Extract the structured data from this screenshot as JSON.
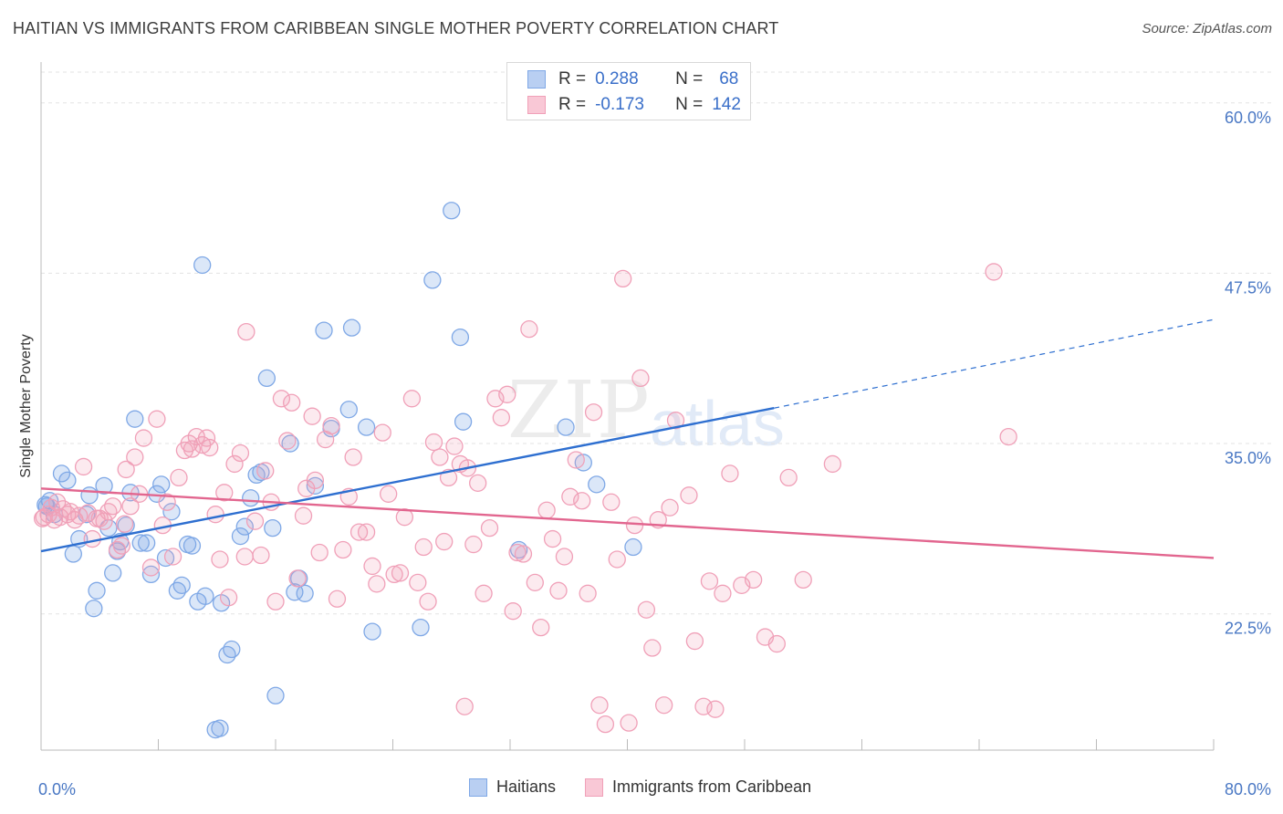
{
  "title": "HAITIAN VS IMMIGRANTS FROM CARIBBEAN SINGLE MOTHER POVERTY CORRELATION CHART",
  "source": "Source: ZipAtlas.com",
  "watermark": {
    "zip": "ZIP",
    "atlas": "atlas"
  },
  "legend": {
    "rows": [
      {
        "r_label": "R =",
        "r_value": "0.288",
        "n_label": "N =",
        "n_value": "68",
        "color": "#7fa8e6"
      },
      {
        "r_label": "R =",
        "r_value": "-0.173",
        "n_label": "N =",
        "n_value": "142",
        "color": "#f0a0b8"
      }
    ]
  },
  "bottom_legend": [
    "Haitians",
    "Immigrants from Caribbean"
  ],
  "chart_data": {
    "type": "scatter",
    "title": "HAITIAN VS IMMIGRANTS FROM CARIBBEAN SINGLE MOTHER POVERTY CORRELATION CHART",
    "xlabel": "",
    "ylabel": "Single Mother Poverty",
    "xlim": [
      0,
      80
    ],
    "ylim": [
      12.5,
      63
    ],
    "x_tick_labels": [
      "0.0%",
      "80.0%"
    ],
    "y_ticks": [
      22.5,
      35.0,
      47.5,
      60.0
    ],
    "y_tick_labels": [
      "22.5%",
      "35.0%",
      "47.5%",
      "60.0%"
    ],
    "grid": true,
    "legend_position": "top-center",
    "series": [
      {
        "name": "Haitians",
        "color": "#7fa8e6",
        "stroke": "#5b8ed6",
        "trend": {
          "x0": 0,
          "y0": 27.1,
          "x1": 50,
          "y1": 37.6,
          "dash_to_x": 80,
          "dash_to_y": 44.1
        },
        "points": [
          [
            0.3,
            30.5
          ],
          [
            0.6,
            30.8
          ],
          [
            0.9,
            29.8
          ],
          [
            1.4,
            32.8
          ],
          [
            1.8,
            32.3
          ],
          [
            2.2,
            26.9
          ],
          [
            2.6,
            28.0
          ],
          [
            3.1,
            29.8
          ],
          [
            3.3,
            31.2
          ],
          [
            3.6,
            22.9
          ],
          [
            3.8,
            24.2
          ],
          [
            4.3,
            31.9
          ],
          [
            4.6,
            28.8
          ],
          [
            4.9,
            25.5
          ],
          [
            5.2,
            27.1
          ],
          [
            5.4,
            27.8
          ],
          [
            5.8,
            29.0
          ],
          [
            6.1,
            31.4
          ],
          [
            6.4,
            36.8
          ],
          [
            6.8,
            27.7
          ],
          [
            7.2,
            27.7
          ],
          [
            7.5,
            25.4
          ],
          [
            7.9,
            31.3
          ],
          [
            8.2,
            32.0
          ],
          [
            8.5,
            26.6
          ],
          [
            8.9,
            30.0
          ],
          [
            9.3,
            24.2
          ],
          [
            9.6,
            24.6
          ],
          [
            10.0,
            27.6
          ],
          [
            10.3,
            27.5
          ],
          [
            10.7,
            23.4
          ],
          [
            11.0,
            48.1
          ],
          [
            11.2,
            23.8
          ],
          [
            11.9,
            14.0
          ],
          [
            12.2,
            14.1
          ],
          [
            12.3,
            23.3
          ],
          [
            12.7,
            19.5
          ],
          [
            13.0,
            19.9
          ],
          [
            13.6,
            28.2
          ],
          [
            13.9,
            28.9
          ],
          [
            14.3,
            31.0
          ],
          [
            14.7,
            32.7
          ],
          [
            15.0,
            32.9
          ],
          [
            15.4,
            39.8
          ],
          [
            15.8,
            28.8
          ],
          [
            16.0,
            16.5
          ],
          [
            17.0,
            35.0
          ],
          [
            17.3,
            24.1
          ],
          [
            17.6,
            25.1
          ],
          [
            18.0,
            24.0
          ],
          [
            18.7,
            31.9
          ],
          [
            19.3,
            43.3
          ],
          [
            19.8,
            36.1
          ],
          [
            21.0,
            37.5
          ],
          [
            21.2,
            43.5
          ],
          [
            22.2,
            36.2
          ],
          [
            22.6,
            21.2
          ],
          [
            25.9,
            21.5
          ],
          [
            26.7,
            47.0
          ],
          [
            28.0,
            52.1
          ],
          [
            28.6,
            42.8
          ],
          [
            28.8,
            36.6
          ],
          [
            32.6,
            27.2
          ],
          [
            35.8,
            36.2
          ],
          [
            37.0,
            33.6
          ],
          [
            37.9,
            32.0
          ],
          [
            40.4,
            27.4
          ],
          [
            0.4,
            30.4
          ]
        ]
      },
      {
        "name": "Immigrants from Caribbean",
        "color": "#f0a0b8",
        "stroke": "#e67a9a",
        "trend": {
          "x0": 0,
          "y0": 31.7,
          "x1": 80,
          "y1": 26.6
        },
        "points": [
          [
            0.2,
            29.6
          ],
          [
            0.5,
            29.8
          ],
          [
            0.7,
            30.3
          ],
          [
            0.9,
            29.4
          ],
          [
            1.1,
            30.7
          ],
          [
            1.3,
            29.6
          ],
          [
            1.5,
            30.2
          ],
          [
            1.8,
            29.8
          ],
          [
            2.0,
            30.0
          ],
          [
            2.3,
            29.4
          ],
          [
            2.6,
            29.7
          ],
          [
            2.9,
            33.3
          ],
          [
            3.2,
            29.9
          ],
          [
            3.5,
            28.0
          ],
          [
            3.8,
            29.5
          ],
          [
            4.0,
            29.5
          ],
          [
            4.3,
            29.3
          ],
          [
            4.6,
            30.0
          ],
          [
            4.9,
            30.4
          ],
          [
            5.2,
            27.2
          ],
          [
            5.5,
            27.5
          ],
          [
            5.7,
            29.1
          ],
          [
            5.8,
            33.1
          ],
          [
            6.1,
            30.4
          ],
          [
            6.4,
            34.0
          ],
          [
            6.7,
            31.3
          ],
          [
            7.0,
            35.4
          ],
          [
            7.5,
            25.9
          ],
          [
            7.9,
            36.8
          ],
          [
            8.3,
            29.0
          ],
          [
            8.6,
            30.7
          ],
          [
            9.0,
            26.7
          ],
          [
            9.4,
            32.5
          ],
          [
            9.8,
            34.5
          ],
          [
            10.1,
            35.0
          ],
          [
            10.3,
            34.6
          ],
          [
            10.6,
            35.5
          ],
          [
            11.0,
            34.9
          ],
          [
            11.3,
            35.4
          ],
          [
            11.5,
            34.7
          ],
          [
            11.9,
            29.8
          ],
          [
            12.2,
            26.5
          ],
          [
            12.5,
            31.4
          ],
          [
            12.8,
            23.7
          ],
          [
            13.2,
            33.5
          ],
          [
            13.6,
            34.3
          ],
          [
            13.9,
            26.7
          ],
          [
            14.0,
            43.2
          ],
          [
            14.6,
            29.3
          ],
          [
            15.0,
            26.8
          ],
          [
            15.3,
            33.0
          ],
          [
            15.7,
            30.7
          ],
          [
            16.0,
            23.4
          ],
          [
            16.4,
            38.3
          ],
          [
            16.8,
            35.2
          ],
          [
            17.1,
            38.0
          ],
          [
            17.5,
            25.1
          ],
          [
            17.9,
            29.7
          ],
          [
            18.1,
            31.7
          ],
          [
            18.5,
            37.0
          ],
          [
            18.7,
            32.3
          ],
          [
            19.0,
            27.0
          ],
          [
            19.4,
            35.3
          ],
          [
            19.8,
            36.3
          ],
          [
            20.2,
            23.6
          ],
          [
            20.6,
            27.2
          ],
          [
            21.0,
            31.1
          ],
          [
            21.3,
            34.0
          ],
          [
            21.7,
            28.5
          ],
          [
            22.2,
            28.5
          ],
          [
            22.6,
            26.0
          ],
          [
            22.9,
            24.7
          ],
          [
            23.3,
            35.8
          ],
          [
            23.7,
            31.3
          ],
          [
            24.1,
            25.4
          ],
          [
            24.5,
            25.5
          ],
          [
            24.8,
            29.6
          ],
          [
            25.3,
            38.3
          ],
          [
            25.7,
            24.8
          ],
          [
            26.1,
            27.4
          ],
          [
            26.4,
            23.4
          ],
          [
            26.8,
            35.1
          ],
          [
            27.2,
            34.0
          ],
          [
            27.5,
            27.8
          ],
          [
            27.8,
            32.5
          ],
          [
            28.2,
            34.8
          ],
          [
            28.6,
            33.5
          ],
          [
            28.9,
            15.7
          ],
          [
            29.1,
            33.2
          ],
          [
            29.5,
            27.6
          ],
          [
            29.8,
            32.1
          ],
          [
            30.2,
            24.0
          ],
          [
            30.6,
            28.8
          ],
          [
            31.0,
            38.3
          ],
          [
            31.4,
            36.9
          ],
          [
            31.8,
            38.6
          ],
          [
            32.2,
            22.7
          ],
          [
            32.5,
            27.0
          ],
          [
            32.9,
            26.9
          ],
          [
            33.3,
            43.4
          ],
          [
            33.7,
            24.8
          ],
          [
            34.1,
            21.5
          ],
          [
            34.5,
            30.1
          ],
          [
            34.9,
            28.0
          ],
          [
            35.3,
            24.2
          ],
          [
            35.7,
            26.7
          ],
          [
            36.1,
            31.1
          ],
          [
            36.5,
            33.8
          ],
          [
            36.9,
            30.8
          ],
          [
            37.3,
            24.0
          ],
          [
            37.7,
            37.3
          ],
          [
            38.1,
            15.8
          ],
          [
            38.5,
            14.4
          ],
          [
            38.9,
            30.7
          ],
          [
            39.3,
            26.5
          ],
          [
            39.7,
            47.1
          ],
          [
            40.1,
            14.5
          ],
          [
            40.5,
            29.0
          ],
          [
            40.9,
            39.8
          ],
          [
            41.3,
            22.8
          ],
          [
            41.7,
            20.0
          ],
          [
            42.1,
            29.4
          ],
          [
            42.5,
            15.8
          ],
          [
            42.9,
            30.3
          ],
          [
            43.3,
            36.7
          ],
          [
            44.2,
            31.2
          ],
          [
            44.6,
            20.5
          ],
          [
            45.2,
            15.7
          ],
          [
            45.6,
            24.9
          ],
          [
            46.0,
            15.5
          ],
          [
            46.5,
            24.0
          ],
          [
            47.0,
            32.8
          ],
          [
            47.8,
            24.6
          ],
          [
            48.6,
            25.0
          ],
          [
            49.4,
            20.8
          ],
          [
            50.2,
            20.3
          ],
          [
            51.0,
            32.5
          ],
          [
            52.0,
            25.0
          ],
          [
            54.0,
            33.5
          ],
          [
            65.0,
            47.6
          ],
          [
            66.0,
            35.5
          ],
          [
            0.1,
            29.5
          ]
        ]
      }
    ]
  }
}
